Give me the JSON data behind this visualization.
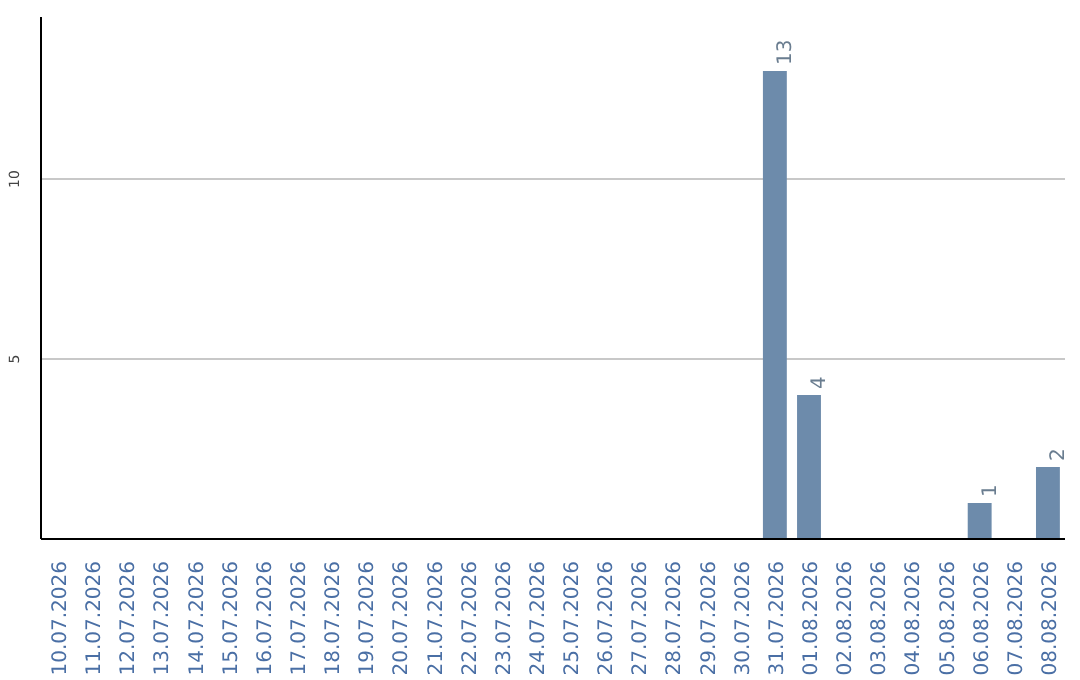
{
  "chart_data": {
    "type": "bar",
    "categories": [
      "10.07.2026",
      "11.07.2026",
      "12.07.2026",
      "13.07.2026",
      "14.07.2026",
      "15.07.2026",
      "16.07.2026",
      "17.07.2026",
      "18.07.2026",
      "19.07.2026",
      "20.07.2026",
      "21.07.2026",
      "22.07.2026",
      "23.07.2026",
      "24.07.2026",
      "25.07.2026",
      "26.07.2026",
      "27.07.2026",
      "28.07.2026",
      "29.07.2026",
      "30.07.2026",
      "31.07.2026",
      "01.08.2026",
      "02.08.2026",
      "03.08.2026",
      "04.08.2026",
      "05.08.2026",
      "06.08.2026",
      "07.08.2026",
      "08.08.2026"
    ],
    "values": [
      0,
      0,
      0,
      0,
      0,
      0,
      0,
      0,
      0,
      0,
      0,
      0,
      0,
      0,
      0,
      0,
      0,
      0,
      0,
      0,
      0,
      13,
      4,
      0,
      0,
      0,
      0,
      1,
      0,
      2
    ],
    "value_labels": [
      null,
      null,
      null,
      null,
      null,
      null,
      null,
      null,
      null,
      null,
      null,
      null,
      null,
      null,
      null,
      null,
      null,
      null,
      null,
      null,
      null,
      "13",
      "4",
      null,
      null,
      null,
      null,
      "1",
      null,
      "2"
    ],
    "color": "#6d8bab",
    "ylim": [
      0,
      14.5
    ],
    "yticks": [
      5,
      10
    ],
    "grid": "y"
  }
}
